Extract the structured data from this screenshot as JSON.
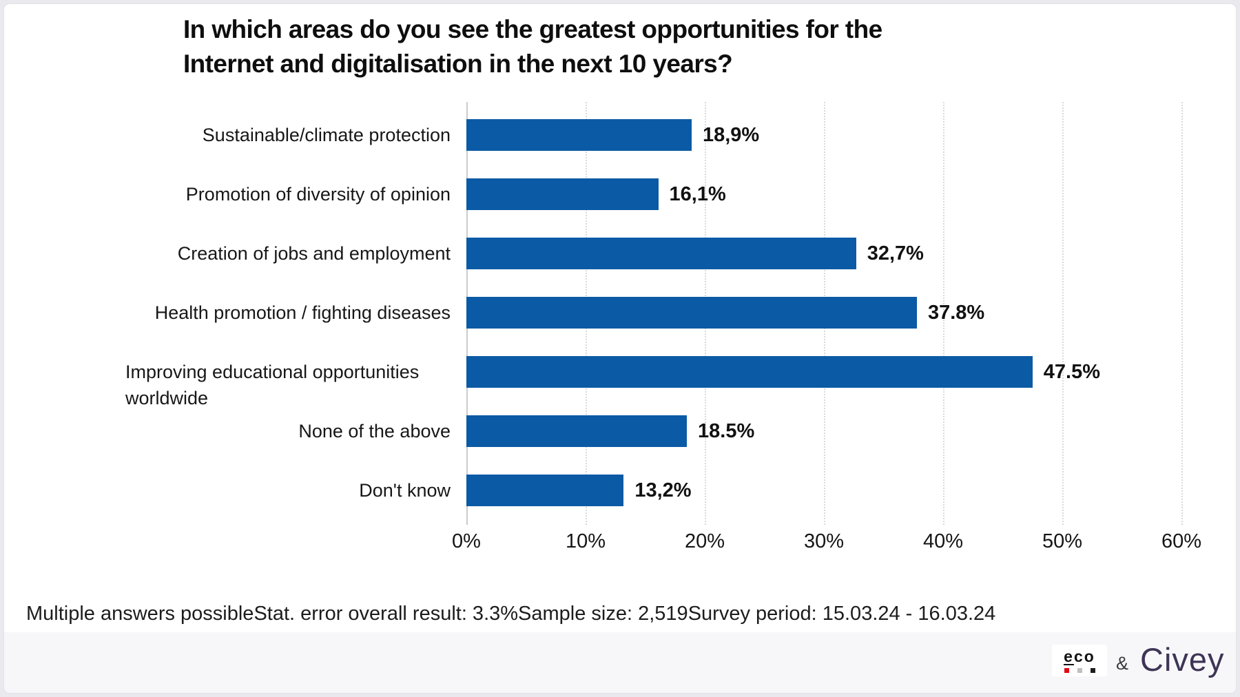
{
  "title": {
    "line1": "In which areas do you see the greatest opportunities for the",
    "line2": "Internet and digitalisation in the next 10 years?"
  },
  "chart_data": {
    "type": "bar",
    "orientation": "horizontal",
    "title": "In which areas do you see the greatest opportunities for the Internet and digitalisation in the next 10 years?",
    "categories": [
      "Sustainable/climate protection",
      "Promotion of diversity of opinion",
      "Creation of jobs and employment",
      "Health promotion / fighting diseases",
      "Improving educational opportunities worldwide",
      "None of the above",
      "Don't know"
    ],
    "values": [
      18.9,
      16.1,
      32.7,
      37.8,
      47.5,
      18.5,
      13.2
    ],
    "value_labels": [
      "18,9%",
      "16,1%",
      "32,7%",
      "37.8%",
      "47.5%",
      "18.5%",
      "13,2%"
    ],
    "x_ticks": [
      "0%",
      "10%",
      "20%",
      "30%",
      "40%",
      "50%",
      "60%"
    ],
    "xlim": [
      0,
      60
    ],
    "xlabel": "",
    "ylabel": "",
    "bar_color": "#0b5aa5",
    "grid": "vertical-dotted",
    "legend": "none"
  },
  "footer": {
    "segments": [
      "Multiple answers possible",
      "Stat. error overall result: 3.3%",
      "Sample size: 2,519",
      "Survey period: 15.03.24 - 16.03.24"
    ]
  },
  "branding": {
    "eco": {
      "label": "eco",
      "letters": [
        "e",
        "c",
        "o"
      ],
      "square_colors": [
        "#e30613",
        "#bfbfbf",
        "#1d1d1b"
      ]
    },
    "ampersand": "&",
    "civey": {
      "label": "Civey",
      "color": "#3e3456"
    }
  }
}
